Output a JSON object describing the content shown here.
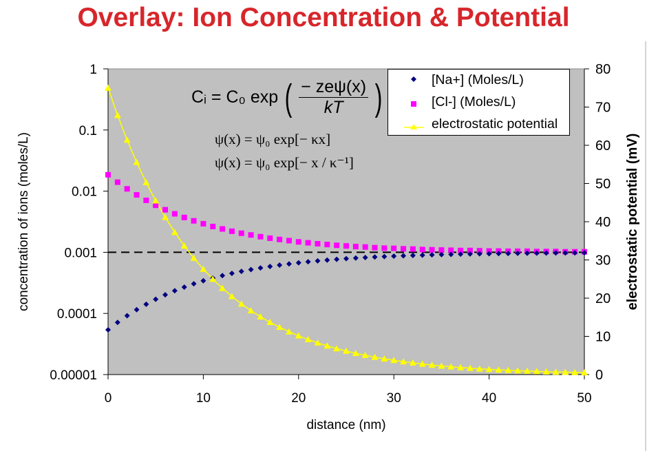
{
  "title": "Overlay: Ion Concentration & Potential",
  "equations": {
    "line1_lhs": "Cᵢ = C₀ exp",
    "line1_num": "− zeψ(x)",
    "line1_den": "kT",
    "line2": "ψ(x) = ψ₀ exp[− κx]",
    "line3": "ψ(x) = ψ₀ exp[− x / κ⁻¹]"
  },
  "chart_data": {
    "type": "scatter",
    "title": "Overlay: Ion Concentration & Potential",
    "xlabel": "distance (nm)",
    "ylabel": "concentration of ions (moles/L)",
    "y2label": "electrostatic potential (mV)",
    "xlim": [
      0,
      50
    ],
    "ylim": [
      1e-05,
      1
    ],
    "yscale": "log",
    "y2lim": [
      0,
      80
    ],
    "xticks": [
      "0",
      "10",
      "20",
      "30",
      "40",
      "50"
    ],
    "yticks": [
      "0.00001",
      "0.0001",
      "0.001",
      "0.01",
      "0.1",
      "1"
    ],
    "y2ticks": [
      "0",
      "10",
      "20",
      "30",
      "40",
      "50",
      "60",
      "70",
      "80"
    ],
    "legend_position": "top-right",
    "reference_line": {
      "axis": "y",
      "value": 0.001,
      "style": "dashed",
      "color": "#000000"
    },
    "colors": {
      "plot_bg": "#c0c0c0",
      "na": "#000080",
      "cl": "#ff00ff",
      "potential": "#ffff00"
    },
    "x": [
      0,
      1,
      2,
      3,
      4,
      5,
      6,
      7,
      8,
      9,
      10,
      11,
      12,
      13,
      14,
      15,
      16,
      17,
      18,
      19,
      20,
      21,
      22,
      23,
      24,
      25,
      26,
      27,
      28,
      29,
      30,
      31,
      32,
      33,
      34,
      35,
      36,
      37,
      38,
      39,
      40,
      41,
      42,
      43,
      44,
      45,
      46,
      47,
      48,
      49,
      50
    ],
    "series": [
      {
        "name": "[Na+] (Moles/L)",
        "axis": "left",
        "marker": "diamond",
        "values": [
          5.4e-05,
          7.14e-05,
          9.17e-05,
          0.0001151,
          0.0001414,
          0.0001703,
          0.0002016,
          0.0002348,
          0.0002695,
          0.0003054,
          0.0003417,
          0.0003785,
          0.0004152,
          0.0004516,
          0.0004872,
          0.0005215,
          0.0005549,
          0.0005869,
          0.0006175,
          0.000646,
          0.0006737,
          0.0006998,
          0.000724,
          0.000746,
          0.0007672,
          0.0007866,
          0.0008049,
          0.000822,
          0.0008378,
          0.0008513,
          0.000865,
          0.0008763,
          0.0008878,
          0.0008976,
          0.0009073,
          0.0009158,
          0.0009233,
          0.0009305,
          0.0009367,
          0.0009426,
          0.0009481,
          0.0009529,
          0.0009573,
          0.0009611,
          0.0009648,
          0.0009682,
          0.0009712,
          0.0009739,
          0.0009762,
          0.0009784,
          0.0009804
        ]
      },
      {
        "name": "[Cl-] (Moles/L)",
        "axis": "left",
        "marker": "square",
        "values": [
          0.01851,
          0.01401,
          0.0109,
          0.00869,
          0.00707,
          0.00587,
          0.00496,
          0.00426,
          0.00371,
          0.00327,
          0.00293,
          0.00264,
          0.00241,
          0.00221,
          0.00205,
          0.00192,
          0.0018,
          0.0017,
          0.00162,
          0.00155,
          0.00148,
          0.00143,
          0.00138,
          0.00134,
          0.0013,
          0.00127,
          0.00124,
          0.00122,
          0.00119,
          0.00117,
          0.00116,
          0.00114,
          0.00113,
          0.00111,
          0.0011,
          0.00109,
          0.00108,
          0.00107,
          0.00107,
          0.00106,
          0.00105,
          0.00105,
          0.00104,
          0.00104,
          0.00104,
          0.00103,
          0.00103,
          0.00103,
          0.00102,
          0.00102,
          0.00102
        ]
      },
      {
        "name": "electrostatic potential",
        "axis": "right",
        "marker": "triangle-line",
        "values": [
          75,
          67.86,
          61.4,
          55.56,
          50.27,
          45.49,
          41.16,
          37.24,
          33.7,
          30.49,
          27.59,
          24.97,
          22.59,
          20.44,
          18.49,
          16.73,
          15.14,
          13.7,
          12.4,
          11.22,
          10.15,
          9.18,
          8.31,
          7.52,
          6.8,
          6.16,
          5.57,
          5.04,
          4.56,
          4.13,
          3.73,
          3.38,
          3.06,
          2.77,
          2.5,
          2.26,
          2.05,
          1.85,
          1.68,
          1.52,
          1.37,
          1.24,
          1.12,
          1.02,
          0.92,
          0.83,
          0.75,
          0.68,
          0.62,
          0.56,
          0.51
        ]
      }
    ]
  }
}
